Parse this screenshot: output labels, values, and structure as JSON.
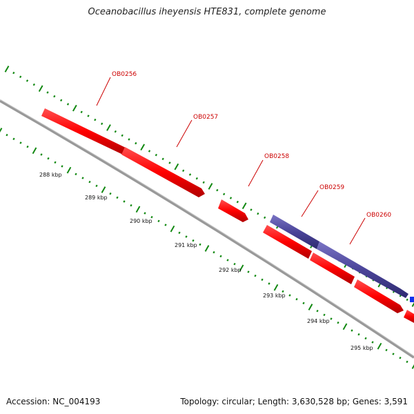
{
  "title": "Oceanobacillus iheyensis HTE831, complete genome",
  "accession": "Accession: NC_004193",
  "summary": "Topology: circular; Length: 3,630,528 bp; Genes: 3,591",
  "colors": {
    "forward_gene": "#ff0000",
    "reverse_gene": "#4a4499",
    "backbone": "#888888",
    "ticks": "#118811",
    "label": "#cc0000"
  },
  "genes": [
    {
      "id": "OB0256",
      "label": "OB0256"
    },
    {
      "id": "OB0257",
      "label": "OB0257"
    },
    {
      "id": "OB0258",
      "label": "OB0258"
    },
    {
      "id": "OB0259",
      "label": "OB0259"
    },
    {
      "id": "OB0260",
      "label": "OB0260"
    }
  ],
  "kbp_labels": [
    "288 kbp",
    "289 kbp",
    "290 kbp",
    "291 kbp",
    "292 kbp",
    "293 kbp",
    "294 kbp",
    "295 kbp"
  ]
}
